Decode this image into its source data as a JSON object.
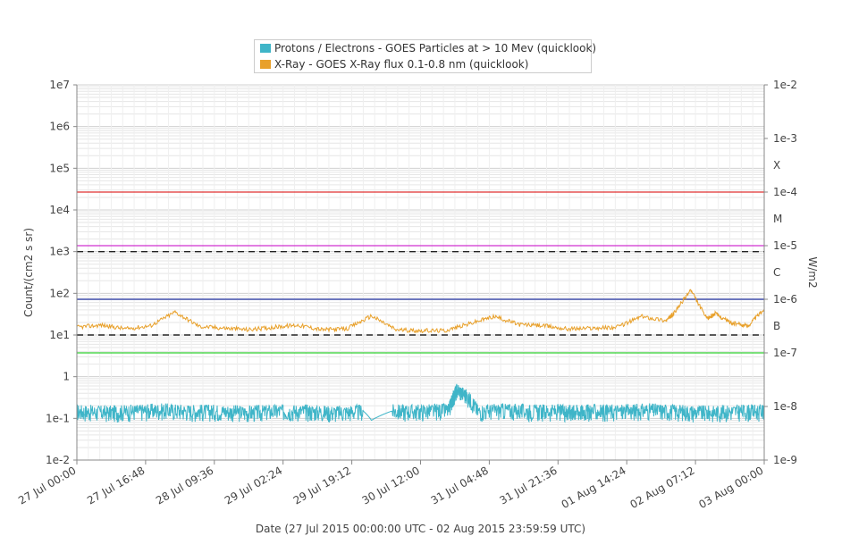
{
  "legend": {
    "items": [
      {
        "label": "Protons / Electrons - GOES Particles at > 10 Mev (quicklook)",
        "color": "#3fb5c8"
      },
      {
        "label": "X-Ray - GOES X-Ray flux 0.1-0.8 nm (quicklook)",
        "color": "#e8a02a"
      }
    ]
  },
  "chart_data": {
    "type": "line",
    "xlabel": "Date (27 Jul 2015 00:00:00 UTC - 02 Aug 2015 23:59:59 UTC)",
    "ylabel_left": "Count/(cm2 s sr)",
    "ylabel_right": "W/m2",
    "x_range_hours": [
      0,
      168
    ],
    "x_ticks": [
      "27 Jul 00:00",
      "27 Jul 16:48",
      "28 Jul 09:36",
      "29 Jul 02:24",
      "29 Jul 19:12",
      "30 Jul 12:00",
      "31 Jul 04:48",
      "31 Jul 21:36",
      "01 Aug 14:24",
      "02 Aug 07:12",
      "03 Aug 00:00"
    ],
    "y_left": {
      "scale": "log",
      "range": [
        0.01,
        10000000
      ],
      "ticks": [
        "1e-2",
        "1e-1",
        "1",
        "1e1",
        "1e2",
        "1e3",
        "1e4",
        "1e5",
        "1e6",
        "1e7"
      ]
    },
    "y_right": {
      "scale": "log",
      "range": [
        1e-09,
        0.01
      ],
      "ticks": [
        "1e-9",
        "1e-8",
        "1e-7",
        "1e-6",
        "1e-5",
        "1e-4",
        "1e-3",
        "1e-2"
      ]
    },
    "flare_classes": [
      "B",
      "C",
      "M",
      "X"
    ],
    "threshold_lines": [
      {
        "axis": "right",
        "value": 0.0001,
        "color": "#e03030",
        "style": "solid"
      },
      {
        "axis": "right",
        "value": 1e-05,
        "color": "#d030d0",
        "style": "solid"
      },
      {
        "axis": "left",
        "value": 1000,
        "color": "#222222",
        "style": "dashed"
      },
      {
        "axis": "right",
        "value": 1e-06,
        "color": "#2030a0",
        "style": "solid"
      },
      {
        "axis": "left",
        "value": 10,
        "color": "#222222",
        "style": "dashed"
      },
      {
        "axis": "right",
        "value": 1e-07,
        "color": "#30d030",
        "style": "solid"
      }
    ],
    "series": [
      {
        "name": "Protons / Electrons - GOES Particles at > 10 Mev (quicklook)",
        "axis": "left",
        "color": "#3fb5c8",
        "x": [
          0,
          7,
          14,
          21,
          28,
          35,
          42,
          49,
          56,
          63,
          70,
          72,
          77,
          84,
          91,
          93,
          98,
          105,
          112,
          119,
          122,
          126,
          133,
          140,
          147,
          154,
          161,
          168
        ],
        "y": [
          0.15,
          0.14,
          0.15,
          0.16,
          0.15,
          0.15,
          0.14,
          0.15,
          0.15,
          0.14,
          0.15,
          0.09,
          0.15,
          0.15,
          0.16,
          0.5,
          0.15,
          0.16,
          0.15,
          0.15,
          0.15,
          0.15,
          0.15,
          0.16,
          0.15,
          0.14,
          0.15,
          0.15
        ]
      },
      {
        "name": "X-Ray - GOES X-Ray flux 0.1-0.8 nm (quicklook)",
        "axis": "right",
        "color": "#e8a02a",
        "x": [
          0,
          6,
          12,
          18,
          24,
          30,
          36,
          42,
          48,
          54,
          60,
          66,
          72,
          78,
          84,
          90,
          96,
          102,
          108,
          114,
          120,
          126,
          132,
          138,
          144,
          146,
          150,
          154,
          156,
          160,
          164,
          168
        ],
        "y": [
          3e-07,
          3.3e-07,
          2.8e-07,
          3.2e-07,
          5.8e-07,
          3.1e-07,
          2.9e-07,
          2.7e-07,
          3e-07,
          3.3e-07,
          2.7e-07,
          2.8e-07,
          4.9e-07,
          2.7e-07,
          2.6e-07,
          2.6e-07,
          3.5e-07,
          4.8e-07,
          3.4e-07,
          3.2e-07,
          2.8e-07,
          2.9e-07,
          3e-07,
          4.8e-07,
          4e-07,
          5.5e-07,
          1.5e-06,
          4.3e-07,
          5.4e-07,
          3.6e-07,
          3.2e-07,
          6.6e-07
        ]
      }
    ]
  }
}
